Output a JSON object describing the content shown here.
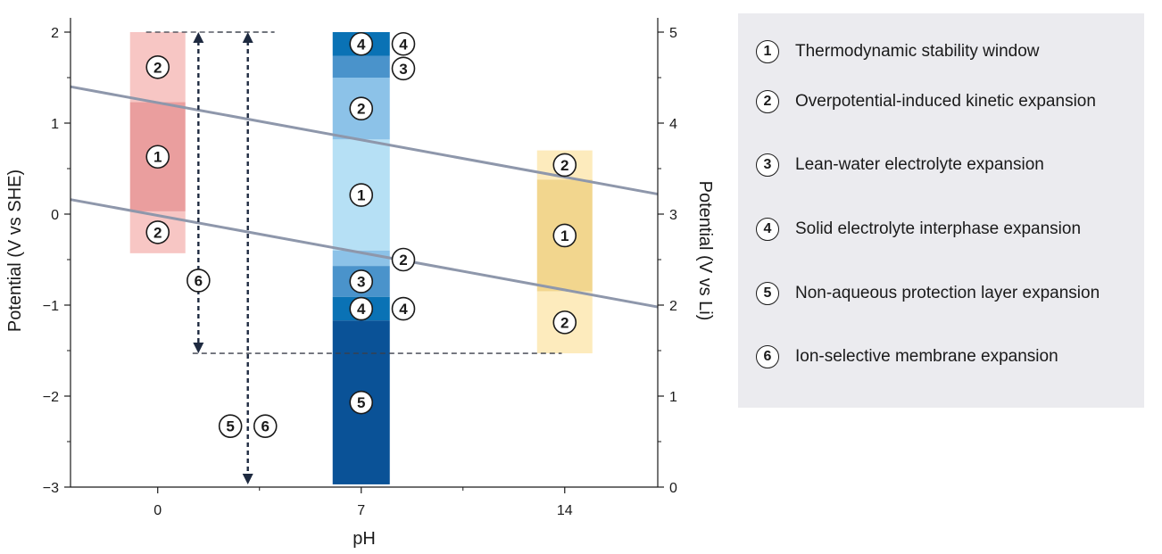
{
  "chart_data": {
    "type": "bar",
    "title": "",
    "xlabel": "pH",
    "ylabel_left": "Potential (V vs SHE)",
    "ylabel_right": "Potential (V vs Li)",
    "x_ticks": [
      0,
      7,
      14
    ],
    "x_range": [
      -3,
      17.2
    ],
    "y_left_ticks": [
      "2",
      "1",
      "0",
      "−1",
      "−2",
      "−3"
    ],
    "y_left_values": [
      2,
      1,
      0,
      -1,
      -2,
      -3
    ],
    "y_left_range": [
      -3,
      2
    ],
    "y_right_ticks": [
      "5",
      "4",
      "3",
      "2",
      "1",
      "0"
    ],
    "y_right_values": [
      2,
      1,
      0,
      -1,
      -2,
      -3
    ],
    "water_stability_lines": [
      {
        "x": [
          -3,
          17.2
        ],
        "y": [
          1.4,
          0.22
        ]
      },
      {
        "x": [
          -3,
          17.2
        ],
        "y": [
          0.16,
          -1.02
        ]
      }
    ],
    "columns": [
      {
        "ph": 0,
        "segments": [
          {
            "id": 2,
            "from": 1.23,
            "to": 2.0,
            "color": "#f7c6c4"
          },
          {
            "id": 1,
            "from": 0.03,
            "to": 1.23,
            "color": "#ea9e9e"
          },
          {
            "id": 2,
            "from": -0.43,
            "to": 0.03,
            "color": "#f7c6c4"
          }
        ]
      },
      {
        "ph": 7,
        "segments": [
          {
            "id": 4,
            "from": 1.74,
            "to": 2.0,
            "color": "#0a72b5"
          },
          {
            "id": 3,
            "from": 1.5,
            "to": 1.74,
            "color": "#4a93cb"
          },
          {
            "id": 2,
            "from": 0.82,
            "to": 1.5,
            "color": "#8cc2e8"
          },
          {
            "id": 1,
            "from": -0.4,
            "to": 0.82,
            "color": "#b6e0f5"
          },
          {
            "id": 2,
            "from": -0.57,
            "to": -0.4,
            "color": "#8cc2e8"
          },
          {
            "id": 3,
            "from": -0.91,
            "to": -0.57,
            "color": "#4a93cb"
          },
          {
            "id": 4,
            "from": -1.17,
            "to": -0.91,
            "color": "#0a72b5"
          },
          {
            "id": 5,
            "from": -2.97,
            "to": -1.17,
            "color": "#0a5297"
          }
        ]
      },
      {
        "ph": 14,
        "segments": [
          {
            "id": 2,
            "from": 0.38,
            "to": 0.7,
            "color": "#fdebbd"
          },
          {
            "id": 1,
            "from": -0.85,
            "to": 0.38,
            "color": "#f2d68e"
          },
          {
            "id": 2,
            "from": -1.53,
            "to": -0.85,
            "color": "#fdebbd"
          }
        ]
      }
    ],
    "side_labels": [
      {
        "id": 4,
        "ph": 8.45,
        "y": 1.87
      },
      {
        "id": 3,
        "ph": 8.45,
        "y": 1.6
      },
      {
        "id": 2,
        "ph": 8.45,
        "y": -0.5
      },
      {
        "id": 4,
        "ph": 8.45,
        "y": -1.04
      }
    ],
    "dashed_lines": [
      {
        "x": [
          -0.4,
          4.0
        ],
        "y": [
          2.0,
          2.0
        ]
      },
      {
        "x": [
          1.2,
          13.9
        ],
        "y": [
          -1.53,
          -1.53
        ]
      }
    ],
    "arrows": [
      {
        "ph": 1.4,
        "from": 2.0,
        "to": -1.53,
        "labels": [
          6
        ]
      },
      {
        "ph": 3.1,
        "from": 2.0,
        "to": -2.97,
        "labels": [
          5,
          6
        ]
      }
    ],
    "arrow_label_positions": [
      {
        "id": 6,
        "ph": 1.4,
        "y": -0.73
      },
      {
        "id": 5,
        "ph": 2.5,
        "y": -2.33
      },
      {
        "id": 6,
        "ph": 3.7,
        "y": -2.33
      }
    ],
    "legend_placement": "right"
  },
  "legend": {
    "items": [
      {
        "num": "1",
        "label": "Thermodynamic stability window"
      },
      {
        "num": "2",
        "label": "Overpotential-induced kinetic expansion"
      },
      {
        "num": "3",
        "label": "Lean-water electrolyte expansion"
      },
      {
        "num": "4",
        "label": "Solid electrolyte interphase expansion"
      },
      {
        "num": "5",
        "label": "Non-aqueous protection layer expansion"
      },
      {
        "num": "6",
        "label": "Ion-selective membrane expansion"
      }
    ]
  },
  "colors": {
    "axis": "#1a1a1a",
    "water_line": "#8e97ab",
    "dashed": "#3a3f4a",
    "arrow": "#1e2a40",
    "legend_bg": "#ebebef"
  }
}
